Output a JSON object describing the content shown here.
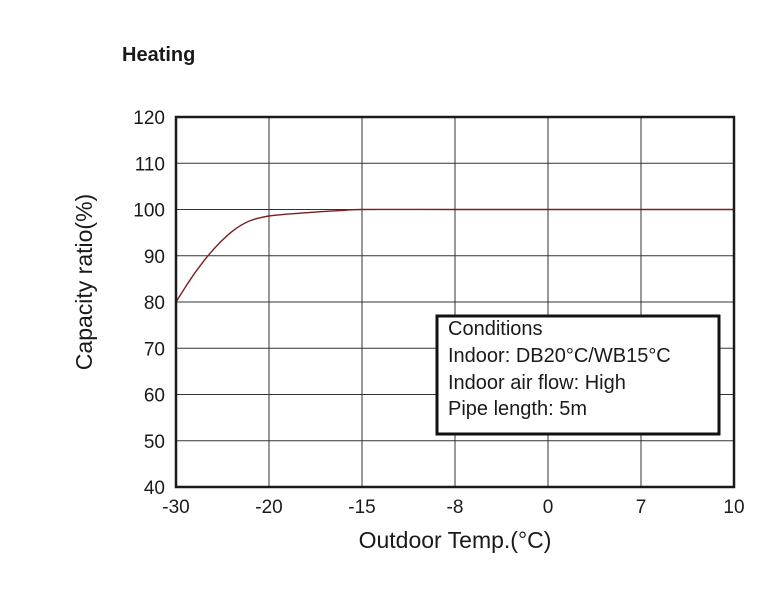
{
  "chart_data": {
    "type": "line",
    "title": "Heating",
    "xlabel": "Outdoor Temp.(°C)",
    "ylabel": "Capacity ratio(%)",
    "x_ticks": [
      "-30",
      "-20",
      "-15",
      "-8",
      "0",
      "7",
      "10"
    ],
    "y_ticks": [
      "40",
      "50",
      "60",
      "70",
      "80",
      "90",
      "100",
      "110",
      "120"
    ],
    "ylim": [
      40,
      120
    ],
    "grid": true,
    "series": [
      {
        "color": "#7a1f1f",
        "x": [
          -30,
          -29,
          -28,
          -27,
          -26,
          -25,
          -24,
          -23,
          -22,
          -21,
          -20,
          -19,
          -18,
          -17,
          -16,
          -15,
          -8,
          0,
          7,
          10
        ],
        "values": [
          80,
          83.2,
          86.2,
          88.9,
          91.3,
          93.4,
          95.2,
          96.6,
          97.6,
          98.2,
          98.6,
          99.0,
          99.3,
          99.6,
          99.8,
          100,
          100,
          100,
          100,
          100
        ]
      }
    ],
    "conditions": {
      "heading": "Conditions",
      "indoor": "Indoor: DB20°C/WB15°C",
      "air_flow": "Indoor air flow: High",
      "pipe": "Pipe length: 5m"
    },
    "conditions_placement": "lower-right"
  }
}
